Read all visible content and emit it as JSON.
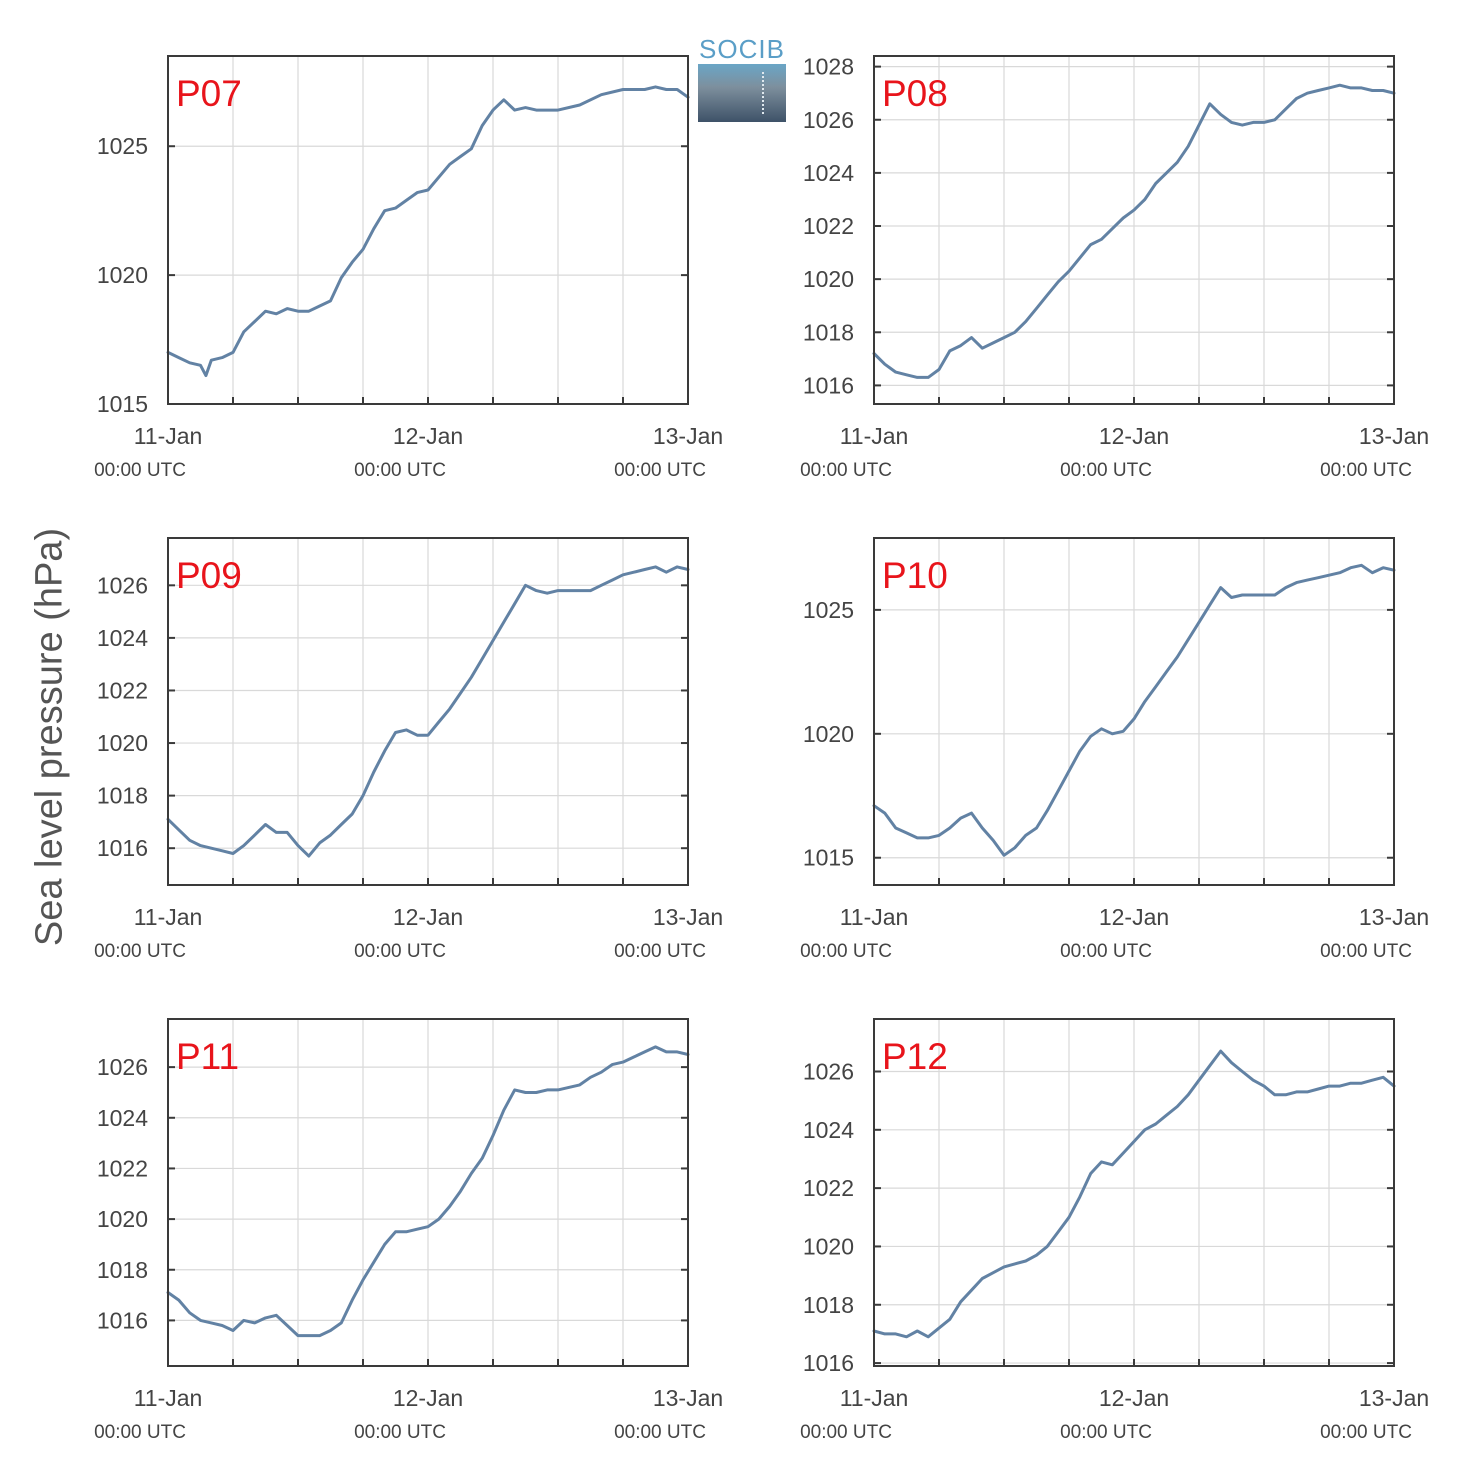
{
  "ylabel": "Sea level pressure (hPa)",
  "logo": {
    "text": "SOCIB"
  },
  "colors": {
    "line": "#6282a4",
    "label": "#e8141b",
    "axis": "#3a3a3a",
    "grid": "#d9d9d9",
    "text": "#444444"
  },
  "x_ticks": [
    {
      "label": "11-Jan",
      "sublabel": "00:00 UTC"
    },
    {
      "label": "12-Jan",
      "sublabel": "00:00 UTC"
    },
    {
      "label": "13-Jan",
      "sublabel": "00:00 UTC"
    }
  ],
  "chart_data": [
    {
      "type": "line",
      "title": "",
      "label": "P07",
      "xlabel": "",
      "ylabel": "Sea level pressure (hPa)",
      "x_unit": "hours since 11-Jan 00:00 UTC",
      "xlim": [
        0,
        48
      ],
      "ylim": [
        1015,
        1028.5
      ],
      "yticks": [
        1015,
        1020,
        1025
      ],
      "grid": true,
      "x": [
        0,
        1,
        2,
        3,
        3.5,
        4,
        5,
        6,
        7,
        8,
        9,
        10,
        11,
        12,
        13,
        14,
        15,
        16,
        17,
        18,
        19,
        20,
        21,
        22,
        23,
        24,
        25,
        26,
        27,
        28,
        29,
        30,
        31,
        32,
        33,
        34,
        36,
        38,
        40,
        42,
        44,
        45,
        46,
        47,
        48
      ],
      "y": [
        1017.0,
        1016.8,
        1016.6,
        1016.5,
        1016.1,
        1016.7,
        1016.8,
        1017.0,
        1017.8,
        1018.2,
        1018.6,
        1018.5,
        1018.7,
        1018.6,
        1018.6,
        1018.8,
        1019.0,
        1019.9,
        1020.5,
        1021.0,
        1021.8,
        1022.5,
        1022.6,
        1022.9,
        1023.2,
        1023.3,
        1023.8,
        1024.3,
        1024.6,
        1024.9,
        1025.8,
        1026.4,
        1026.8,
        1026.4,
        1026.5,
        1026.4,
        1026.4,
        1026.6,
        1027.0,
        1027.2,
        1027.2,
        1027.3,
        1027.2,
        1027.2,
        1026.9
      ]
    },
    {
      "type": "line",
      "title": "",
      "label": "P08",
      "xlabel": "",
      "ylabel": "Sea level pressure (hPa)",
      "x_unit": "hours since 11-Jan 00:00 UTC",
      "xlim": [
        0,
        48
      ],
      "ylim": [
        1015.3,
        1028.4
      ],
      "yticks": [
        1016,
        1018,
        1020,
        1022,
        1024,
        1026,
        1028
      ],
      "grid": true,
      "x": [
        0,
        1,
        2,
        3,
        4,
        5,
        6,
        7,
        8,
        9,
        10,
        11,
        12,
        13,
        14,
        15,
        16,
        17,
        18,
        19,
        20,
        21,
        22,
        23,
        24,
        25,
        26,
        27,
        28,
        29,
        30,
        31,
        32,
        33,
        34,
        35,
        36,
        37,
        38,
        39,
        40,
        41,
        42,
        43,
        44,
        45,
        46,
        47,
        48
      ],
      "y": [
        1017.2,
        1016.8,
        1016.5,
        1016.4,
        1016.3,
        1016.3,
        1016.6,
        1017.3,
        1017.5,
        1017.8,
        1017.4,
        1017.6,
        1017.8,
        1018.0,
        1018.4,
        1018.9,
        1019.4,
        1019.9,
        1020.3,
        1020.8,
        1021.3,
        1021.5,
        1021.9,
        1022.3,
        1022.6,
        1023.0,
        1023.6,
        1024.0,
        1024.4,
        1025.0,
        1025.8,
        1026.6,
        1026.2,
        1025.9,
        1025.8,
        1025.9,
        1025.9,
        1026.0,
        1026.4,
        1026.8,
        1027.0,
        1027.1,
        1027.2,
        1027.3,
        1027.2,
        1027.2,
        1027.1,
        1027.1,
        1027.0
      ]
    },
    {
      "type": "line",
      "title": "",
      "label": "P09",
      "xlabel": "",
      "ylabel": "Sea level pressure (hPa)",
      "x_unit": "hours since 11-Jan 00:00 UTC",
      "xlim": [
        0,
        48
      ],
      "ylim": [
        1014.6,
        1027.8
      ],
      "yticks": [
        1016,
        1018,
        1020,
        1022,
        1024,
        1026
      ],
      "grid": true,
      "x": [
        0,
        1,
        2,
        3,
        4,
        5,
        6,
        7,
        8,
        9,
        10,
        11,
        12,
        13,
        14,
        15,
        16,
        17,
        18,
        19,
        20,
        21,
        22,
        23,
        24,
        25,
        26,
        27,
        28,
        29,
        30,
        31,
        32,
        33,
        34,
        35,
        36,
        37,
        38,
        39,
        40,
        41,
        42,
        43,
        44,
        45,
        46,
        47,
        48
      ],
      "y": [
        1017.1,
        1016.7,
        1016.3,
        1016.1,
        1016.0,
        1015.9,
        1015.8,
        1016.1,
        1016.5,
        1016.9,
        1016.6,
        1016.6,
        1016.1,
        1015.7,
        1016.2,
        1016.5,
        1016.9,
        1017.3,
        1018.0,
        1018.9,
        1019.7,
        1020.4,
        1020.5,
        1020.3,
        1020.3,
        1020.8,
        1021.3,
        1021.9,
        1022.5,
        1023.2,
        1023.9,
        1024.6,
        1025.3,
        1026.0,
        1025.8,
        1025.7,
        1025.8,
        1025.8,
        1025.8,
        1025.8,
        1026.0,
        1026.2,
        1026.4,
        1026.5,
        1026.6,
        1026.7,
        1026.5,
        1026.7,
        1026.6
      ]
    },
    {
      "type": "line",
      "title": "",
      "label": "P10",
      "xlabel": "",
      "ylabel": "Sea level pressure (hPa)",
      "x_unit": "hours since 11-Jan 00:00 UTC",
      "xlim": [
        0,
        48
      ],
      "ylim": [
        1013.9,
        1027.9
      ],
      "yticks": [
        1015,
        1020,
        1025
      ],
      "grid": true,
      "x": [
        0,
        1,
        2,
        3,
        4,
        5,
        6,
        7,
        8,
        9,
        10,
        11,
        12,
        13,
        14,
        15,
        16,
        17,
        18,
        19,
        20,
        21,
        22,
        23,
        24,
        25,
        26,
        27,
        28,
        29,
        30,
        31,
        32,
        33,
        34,
        35,
        36,
        37,
        38,
        39,
        40,
        41,
        42,
        43,
        44,
        45,
        46,
        47,
        48
      ],
      "y": [
        1017.1,
        1016.8,
        1016.2,
        1016.0,
        1015.8,
        1015.8,
        1015.9,
        1016.2,
        1016.6,
        1016.8,
        1016.2,
        1015.7,
        1015.1,
        1015.4,
        1015.9,
        1016.2,
        1016.9,
        1017.7,
        1018.5,
        1019.3,
        1019.9,
        1020.2,
        1020.0,
        1020.1,
        1020.6,
        1021.3,
        1021.9,
        1022.5,
        1023.1,
        1023.8,
        1024.5,
        1025.2,
        1025.9,
        1025.5,
        1025.6,
        1025.6,
        1025.6,
        1025.6,
        1025.9,
        1026.1,
        1026.2,
        1026.3,
        1026.4,
        1026.5,
        1026.7,
        1026.8,
        1026.5,
        1026.7,
        1026.6
      ]
    },
    {
      "type": "line",
      "title": "",
      "label": "P11",
      "xlabel": "",
      "ylabel": "Sea level pressure (hPa)",
      "x_unit": "hours since 11-Jan 00:00 UTC",
      "xlim": [
        0,
        48
      ],
      "ylim": [
        1014.2,
        1027.9
      ],
      "yticks": [
        1016,
        1018,
        1020,
        1022,
        1024,
        1026
      ],
      "grid": true,
      "x": [
        0,
        1,
        2,
        3,
        4,
        5,
        6,
        7,
        8,
        9,
        10,
        11,
        12,
        13,
        14,
        15,
        16,
        17,
        18,
        19,
        20,
        21,
        22,
        23,
        24,
        25,
        26,
        27,
        28,
        29,
        30,
        31,
        32,
        33,
        34,
        35,
        36,
        37,
        38,
        39,
        40,
        41,
        42,
        43,
        44,
        45,
        46,
        47,
        48
      ],
      "y": [
        1017.1,
        1016.8,
        1016.3,
        1016.0,
        1015.9,
        1015.8,
        1015.6,
        1016.0,
        1015.9,
        1016.1,
        1016.2,
        1015.8,
        1015.4,
        1015.4,
        1015.4,
        1015.6,
        1015.9,
        1016.8,
        1017.6,
        1018.3,
        1019.0,
        1019.5,
        1019.5,
        1019.6,
        1019.7,
        1020.0,
        1020.5,
        1021.1,
        1021.8,
        1022.4,
        1023.3,
        1024.3,
        1025.1,
        1025.0,
        1025.0,
        1025.1,
        1025.1,
        1025.2,
        1025.3,
        1025.6,
        1025.8,
        1026.1,
        1026.2,
        1026.4,
        1026.6,
        1026.8,
        1026.6,
        1026.6,
        1026.5
      ]
    },
    {
      "type": "line",
      "title": "",
      "label": "P12",
      "xlabel": "",
      "ylabel": "Sea level pressure (hPa)",
      "x_unit": "hours since 11-Jan 00:00 UTC",
      "xlim": [
        0,
        48
      ],
      "ylim": [
        1015.9,
        1027.8
      ],
      "yticks": [
        1016,
        1018,
        1020,
        1022,
        1024,
        1026
      ],
      "grid": true,
      "x": [
        0,
        1,
        2,
        3,
        4,
        5,
        6,
        7,
        8,
        9,
        10,
        11,
        12,
        13,
        14,
        15,
        16,
        17,
        18,
        19,
        20,
        21,
        22,
        23,
        24,
        25,
        26,
        27,
        28,
        29,
        30,
        31,
        32,
        33,
        34,
        35,
        36,
        37,
        38,
        39,
        40,
        41,
        42,
        43,
        44,
        45,
        46,
        47,
        48
      ],
      "y": [
        1017.1,
        1017.0,
        1017.0,
        1016.9,
        1017.1,
        1016.9,
        1017.2,
        1017.5,
        1018.1,
        1018.5,
        1018.9,
        1019.1,
        1019.3,
        1019.4,
        1019.5,
        1019.7,
        1020.0,
        1020.5,
        1021.0,
        1021.7,
        1022.5,
        1022.9,
        1022.8,
        1023.2,
        1023.6,
        1024.0,
        1024.2,
        1024.5,
        1024.8,
        1025.2,
        1025.7,
        1026.2,
        1026.7,
        1026.3,
        1026.0,
        1025.7,
        1025.5,
        1025.2,
        1025.2,
        1025.3,
        1025.3,
        1025.4,
        1025.5,
        1025.5,
        1025.6,
        1025.6,
        1025.7,
        1025.8,
        1025.5
      ]
    }
  ]
}
